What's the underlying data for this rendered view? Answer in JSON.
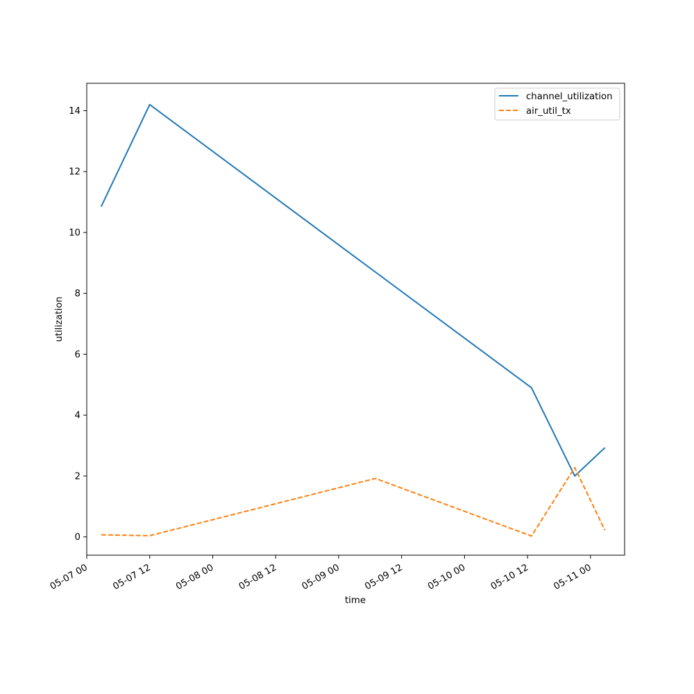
{
  "chart_data": {
    "type": "line",
    "title": "",
    "xlabel": "time",
    "ylabel": "utilization",
    "x_ticks": [
      "05-07 00",
      "05-07 12",
      "05-08 00",
      "05-08 12",
      "05-09 00",
      "05-09 12",
      "05-10 00",
      "05-10 12",
      "05-11 00"
    ],
    "y_ticks": [
      "0",
      "2",
      "4",
      "6",
      "8",
      "10",
      "12",
      "14"
    ],
    "xlim": [
      "2025-05-07T00:00",
      "2025-05-11T06:30"
    ],
    "ylim": [
      -0.6,
      14.9
    ],
    "grid": false,
    "legend_position": "top-right",
    "colors": {
      "channel_utilization": "#1f77b4",
      "air_util_tx": "#ff7f0e"
    },
    "series": [
      {
        "name": "channel_utilization",
        "style": "solid",
        "x": [
          "2025-05-07T02:45",
          "2025-05-07T12:00",
          "2025-05-09T07:00",
          "2025-05-10T12:45",
          "2025-05-10T21:00",
          "2025-05-11T02:45"
        ],
        "y": [
          10.85,
          14.2,
          8.7,
          4.9,
          2.0,
          2.93
        ]
      },
      {
        "name": "air_util_tx",
        "style": "dashed",
        "x": [
          "2025-05-07T02:45",
          "2025-05-07T12:00",
          "2025-05-09T07:00",
          "2025-05-10T12:45",
          "2025-05-10T21:00",
          "2025-05-11T02:45"
        ],
        "y": [
          0.07,
          0.04,
          1.92,
          0.03,
          2.28,
          0.22
        ]
      }
    ]
  }
}
